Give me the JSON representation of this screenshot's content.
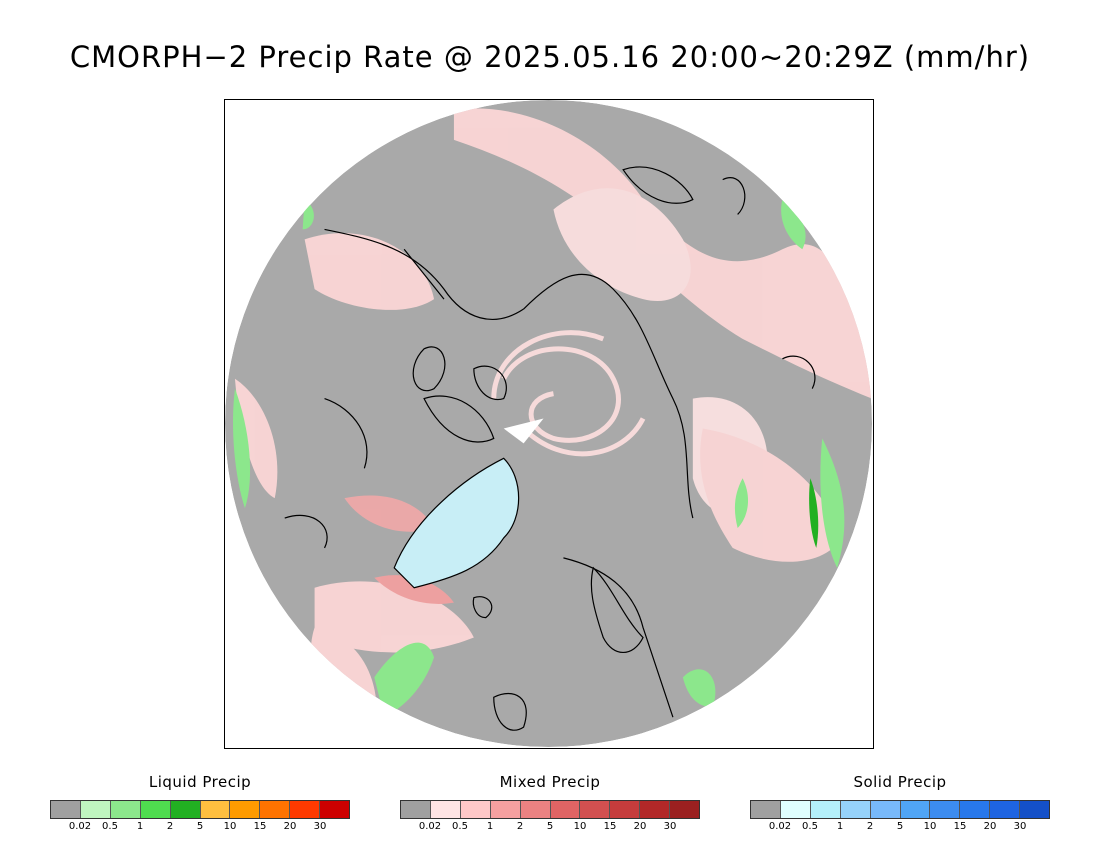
{
  "title": "CMORPH−2 Precip Rate @ 2025.05.16 20:00~20:29Z (mm/hr)",
  "map": {
    "projection": "north polar stereographic",
    "colors": {
      "background_gray": "#a9a9a9",
      "outside": "#ffffff",
      "coastline": "#000000",
      "greenland_ice": "#c8eef6"
    }
  },
  "legends": [
    {
      "title": "Liquid Precip",
      "colors": [
        "#a0a0a0",
        "#c0f5c0",
        "#8ce78c",
        "#4fdc4f",
        "#22b022",
        "#ffbf3f",
        "#ff9b00",
        "#ff7300",
        "#ff3a00",
        "#cd0000"
      ],
      "ticks": [
        "0.02",
        "0.5",
        "1",
        "2",
        "5",
        "10",
        "15",
        "20",
        "30"
      ]
    },
    {
      "title": "Mixed Precip",
      "colors": [
        "#a0a0a0",
        "#ffe4e4",
        "#ffc8c8",
        "#f5a0a0",
        "#eb8282",
        "#e06464",
        "#d25050",
        "#c53c3c",
        "#b22828",
        "#9b2020"
      ],
      "ticks": [
        "0.02",
        "0.5",
        "1",
        "2",
        "5",
        "10",
        "15",
        "20",
        "30"
      ]
    },
    {
      "title": "Solid Precip",
      "colors": [
        "#a0a0a0",
        "#e0ffff",
        "#b4f0fa",
        "#96d2fa",
        "#78b9fa",
        "#50a5f5",
        "#3c8cf0",
        "#2878eb",
        "#1e64e1",
        "#1450c8"
      ],
      "ticks": [
        "0.02",
        "0.5",
        "1",
        "2",
        "5",
        "10",
        "15",
        "20",
        "30"
      ]
    }
  ]
}
